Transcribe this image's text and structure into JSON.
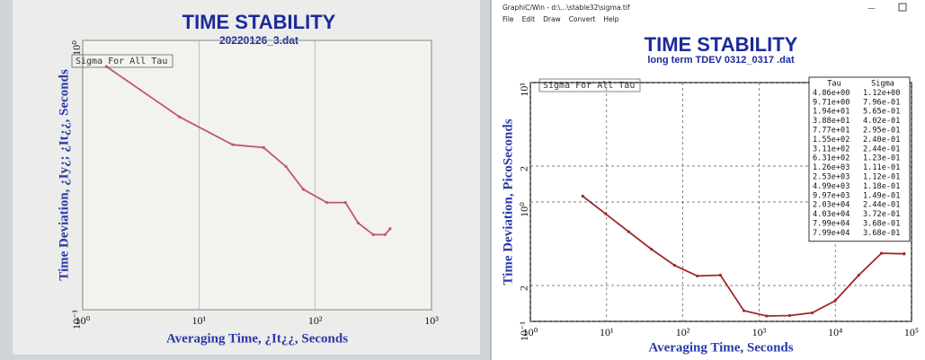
{
  "window": {
    "title": "GraphiC/Win - d:\\...\\stable32\\sigma.tif",
    "menu": [
      "File",
      "Edit",
      "Draw",
      "Convert",
      "Help"
    ]
  },
  "chart_data": [
    {
      "type": "line",
      "title": "TIME STABILITY",
      "subtitle": "20220126_3.dat",
      "x_label": "Averaging Time, ¿It¿¿, Seconds",
      "y_label": "Time Deviation, ¿Iy¿; ¿It¿¿, Seconds",
      "log_x": true,
      "log_y": true,
      "grid": true,
      "xlim": [
        1,
        1000
      ],
      "ylim": [
        0.1,
        1
      ],
      "xticks": [
        {
          "value": 1,
          "label": "10⁰"
        },
        {
          "value": 10,
          "label": "10¹"
        },
        {
          "value": 100,
          "label": "10²"
        },
        {
          "value": 1000,
          "label": "10³"
        }
      ],
      "yticks": [
        {
          "value": 0.1,
          "label": "10⁻¹"
        },
        {
          "value": 1,
          "label": "10⁰"
        }
      ],
      "x": [
        1.6,
        6.8,
        19.5,
        36,
        56,
        79,
        126,
        182,
        234,
        316,
        400,
        440
      ],
      "series": [
        {
          "name": "Sigma For All Tau",
          "color": "#c05868",
          "values": [
            0.8,
            0.52,
            0.41,
            0.4,
            0.34,
            0.28,
            0.25,
            0.25,
            0.21,
            0.19,
            0.19,
            0.2
          ]
        }
      ]
    },
    {
      "type": "line",
      "title": "TIME STABILITY",
      "subtitle": "long term TDEV 0312_0317 .dat",
      "x_label": "Averaging Time, Seconds",
      "y_label": "Time Deviation, PicoSeconds",
      "log_x": true,
      "log_y": true,
      "grid": true,
      "xlim": [
        1,
        100000
      ],
      "ylim": [
        0.1,
        10
      ],
      "xticks": [
        {
          "value": 1,
          "label": "10⁰"
        },
        {
          "value": 10,
          "label": "10¹"
        },
        {
          "value": 100,
          "label": "10²"
        },
        {
          "value": 1000,
          "label": "10³"
        },
        {
          "value": 10000,
          "label": "10⁴"
        },
        {
          "value": 100000,
          "label": "10⁵"
        }
      ],
      "yticks": [
        {
          "value": 0.1,
          "label": "10⁻¹"
        },
        {
          "value": 0.2,
          "label": "2"
        },
        {
          "value": 1,
          "label": "10⁰"
        },
        2,
        {
          "value": 10,
          "label": "10¹"
        }
      ],
      "table_header": [
        "Tau",
        "Sigma"
      ],
      "x": [
        4.86,
        9.71,
        19.4,
        38.8,
        77.7,
        155,
        311,
        631,
        1260,
        2530,
        4990,
        9970,
        20300,
        40300,
        79900,
        79900
      ],
      "x_labels": [
        "4.86e+00",
        "9.71e+00",
        "1.94e+01",
        "3.88e+01",
        "7.77e+01",
        "1.55e+02",
        "3.11e+02",
        "6.31e+02",
        "1.26e+03",
        "2.53e+03",
        "4.99e+03",
        "9.97e+03",
        "2.03e+04",
        "4.03e+04",
        "7.99e+04",
        "7.99e+04"
      ],
      "series": [
        {
          "name": "Sigma For All Tau",
          "color": "#a02828",
          "values": [
            1.12,
            0.796,
            0.565,
            0.402,
            0.295,
            0.24,
            0.244,
            0.123,
            0.111,
            0.112,
            0.118,
            0.149,
            0.244,
            0.372,
            0.368,
            0.368
          ],
          "value_labels": [
            "1.12e+00",
            "7.96e-01",
            "5.65e-01",
            "4.02e-01",
            "2.95e-01",
            "2.40e-01",
            "2.44e-01",
            "1.23e-01",
            "1.11e-01",
            "1.12e-01",
            "1.18e-01",
            "1.49e-01",
            "2.44e-01",
            "3.72e-01",
            "3.68e-01",
            "3.68e-01"
          ]
        }
      ]
    }
  ]
}
